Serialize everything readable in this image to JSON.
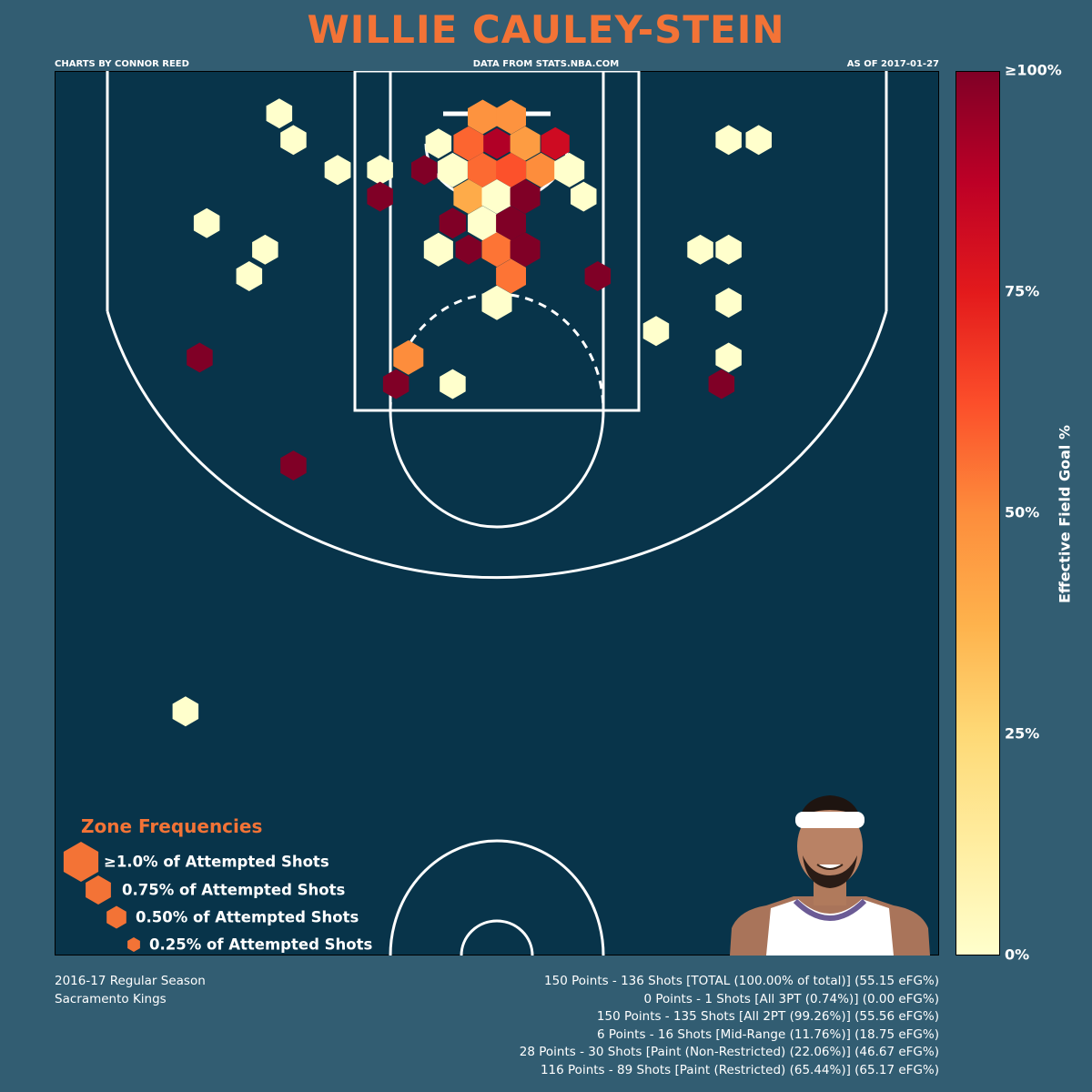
{
  "title": "WILLIE CAULEY-STEIN",
  "header": {
    "credit": "CHARTS BY CONNOR REED",
    "source": "DATA FROM STATS.NBA.COM",
    "date": "AS OF 2017-01-27"
  },
  "colors": {
    "background": "#325d72",
    "court": "#08344a",
    "accent": "#f37336",
    "lines": "#ffffff",
    "cold": "#ffffcc",
    "hot": "#800026"
  },
  "colorbar": {
    "title": "Effective Field Goal %",
    "ticks": [
      "0%",
      "25%",
      "50%",
      "75%",
      "≥100%"
    ]
  },
  "legend": {
    "title": "Zone Frequencies",
    "items": [
      {
        "label": "≥1.0% of Attempted Shots",
        "frequency": 1.0
      },
      {
        "label": "0.75% of Attempted Shots",
        "frequency": 0.75
      },
      {
        "label": "0.50% of Attempted Shots",
        "frequency": 0.5
      },
      {
        "label": "0.25% of Attempted Shots",
        "frequency": 0.25
      }
    ]
  },
  "footer": {
    "season": "2016-17 Regular Season",
    "team": "Sacramento Kings",
    "stats": [
      "150 Points - 136 Shots [TOTAL (100.00% of total)] (55.15 eFG%)",
      "0 Points - 1 Shots [All 3PT (0.74%)] (0.00 eFG%)",
      "150 Points - 135 Shots [All 2PT (99.26%)] (55.56 eFG%)",
      "6 Points - 16 Shots [Mid-Range (11.76%)] (18.75 eFG%)",
      "28 Points - 30 Shots [Paint (Non-Restricted) (22.06%)] (46.67 eFG%)",
      "116 Points - 89 Shots [Paint (Restricted) (65.44%)] (65.17 eFG%)"
    ]
  },
  "portrait": {
    "name": "player-headshot"
  },
  "chart_data": {
    "type": "hexbin",
    "x_unit": "feet from hoop",
    "y_unit": "feet from baseline",
    "xlim": [
      -25,
      25
    ],
    "ylim": [
      0,
      50
    ],
    "color_metric": "eFG%",
    "hexes": [
      {
        "x": -0.8,
        "y": 2.6,
        "efg": 48,
        "freq": 1.0
      },
      {
        "x": 0.8,
        "y": 2.6,
        "efg": 48,
        "freq": 1.0
      },
      {
        "x": -1.6,
        "y": 4.1,
        "efg": 58,
        "freq": 1.0
      },
      {
        "x": 0.0,
        "y": 4.1,
        "efg": 90,
        "freq": 0.8
      },
      {
        "x": 1.6,
        "y": 4.1,
        "efg": 45,
        "freq": 1.0
      },
      {
        "x": 3.3,
        "y": 4.1,
        "efg": 82,
        "freq": 0.9
      },
      {
        "x": -3.3,
        "y": 4.1,
        "efg": 0,
        "freq": 0.75
      },
      {
        "x": -2.5,
        "y": 5.6,
        "efg": 0,
        "freq": 1.0
      },
      {
        "x": -0.8,
        "y": 5.6,
        "efg": 57,
        "freq": 1.0
      },
      {
        "x": 0.8,
        "y": 5.6,
        "efg": 62,
        "freq": 1.0
      },
      {
        "x": 2.5,
        "y": 5.6,
        "efg": 50,
        "freq": 1.0
      },
      {
        "x": 4.1,
        "y": 5.6,
        "efg": 0,
        "freq": 1.0
      },
      {
        "x": -4.1,
        "y": 5.6,
        "efg": 100,
        "freq": 0.75
      },
      {
        "x": -6.6,
        "y": 5.6,
        "efg": 0,
        "freq": 0.75
      },
      {
        "x": -9.0,
        "y": 5.6,
        "efg": 0,
        "freq": 0.75
      },
      {
        "x": -9.0,
        "y": 5.6,
        "efg": 0,
        "freq": 0.75
      },
      {
        "x": -1.6,
        "y": 7.1,
        "efg": 40,
        "freq": 1.0
      },
      {
        "x": 0.0,
        "y": 7.1,
        "efg": 0,
        "freq": 1.0
      },
      {
        "x": 1.6,
        "y": 7.1,
        "efg": 100,
        "freq": 1.0
      },
      {
        "x": 4.9,
        "y": 7.1,
        "efg": 0,
        "freq": 0.75
      },
      {
        "x": -6.6,
        "y": 7.1,
        "efg": 100,
        "freq": 0.75
      },
      {
        "x": -2.5,
        "y": 8.6,
        "efg": 100,
        "freq": 0.8
      },
      {
        "x": -0.8,
        "y": 8.6,
        "efg": 0,
        "freq": 1.0
      },
      {
        "x": 0.8,
        "y": 8.6,
        "efg": 100,
        "freq": 1.0
      },
      {
        "x": -3.3,
        "y": 10.1,
        "efg": 0,
        "freq": 0.95
      },
      {
        "x": -1.6,
        "y": 10.1,
        "efg": 100,
        "freq": 0.75
      },
      {
        "x": 0.0,
        "y": 10.1,
        "efg": 55,
        "freq": 1.0
      },
      {
        "x": 1.6,
        "y": 10.1,
        "efg": 100,
        "freq": 1.0
      },
      {
        "x": 0.8,
        "y": 11.6,
        "efg": 55,
        "freq": 1.0
      },
      {
        "x": 5.7,
        "y": 11.6,
        "efg": 100,
        "freq": 0.75
      },
      {
        "x": 0.0,
        "y": 13.1,
        "efg": 0,
        "freq": 1.0
      },
      {
        "x": -5.0,
        "y": 16.2,
        "efg": 50,
        "freq": 1.0
      },
      {
        "x": -5.7,
        "y": 17.7,
        "efg": 100,
        "freq": 0.75
      },
      {
        "x": -2.5,
        "y": 17.7,
        "efg": 0,
        "freq": 0.75
      },
      {
        "x": -12.3,
        "y": 2.4,
        "efg": 0,
        "freq": 0.75
      },
      {
        "x": -11.5,
        "y": 3.9,
        "efg": 0,
        "freq": 0.75
      },
      {
        "x": -16.4,
        "y": 8.6,
        "efg": 0,
        "freq": 0.75
      },
      {
        "x": -13.1,
        "y": 10.1,
        "efg": 0,
        "freq": 0.75
      },
      {
        "x": -14.0,
        "y": 11.6,
        "efg": 0,
        "freq": 0.75
      },
      {
        "x": -16.8,
        "y": 16.2,
        "efg": 100,
        "freq": 0.75
      },
      {
        "x": -11.5,
        "y": 22.3,
        "efg": 100,
        "freq": 0.75
      },
      {
        "x": -17.6,
        "y": 36.2,
        "efg": 0,
        "freq": 0.75
      },
      {
        "x": 13.1,
        "y": 3.9,
        "efg": 0,
        "freq": 0.75
      },
      {
        "x": 14.8,
        "y": 3.9,
        "efg": 0,
        "freq": 0.75
      },
      {
        "x": 11.5,
        "y": 10.1,
        "efg": 0,
        "freq": 0.75
      },
      {
        "x": 13.1,
        "y": 10.1,
        "efg": 0,
        "freq": 0.75
      },
      {
        "x": 13.1,
        "y": 13.1,
        "efg": 0,
        "freq": 0.75
      },
      {
        "x": 9.0,
        "y": 14.7,
        "efg": 0,
        "freq": 0.75
      },
      {
        "x": 13.1,
        "y": 16.2,
        "efg": 0,
        "freq": 0.75
      },
      {
        "x": 12.7,
        "y": 17.7,
        "efg": 100,
        "freq": 0.75
      }
    ]
  }
}
